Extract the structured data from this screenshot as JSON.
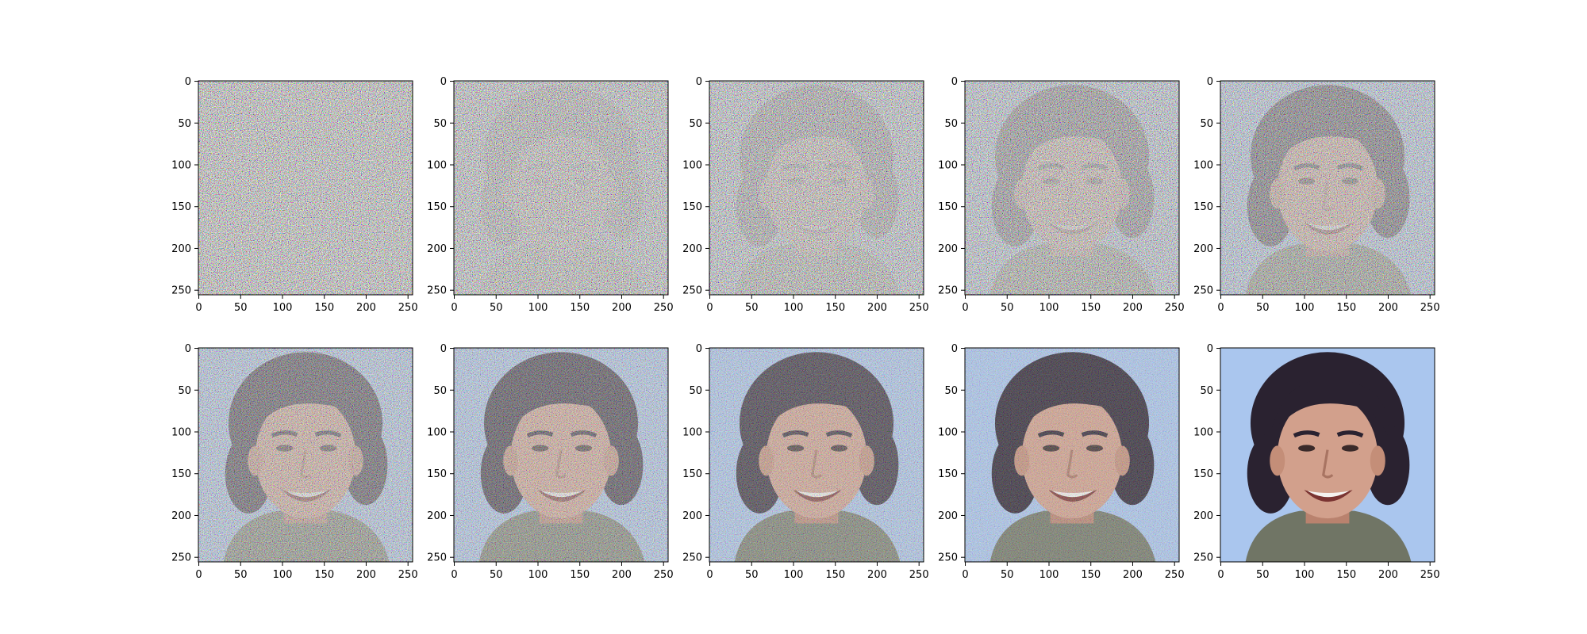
{
  "figure": {
    "rows": 2,
    "cols": 5,
    "axis_range": {
      "x": [
        0,
        255
      ],
      "y": [
        0,
        255
      ]
    },
    "tick_values": [
      0,
      50,
      100,
      150,
      200,
      250
    ],
    "tick_labels": [
      "0",
      "50",
      "100",
      "150",
      "200",
      "250"
    ],
    "panels": [
      {
        "noise_level": 1.0
      },
      {
        "noise_level": 0.96
      },
      {
        "noise_level": 0.92
      },
      {
        "noise_level": 0.86
      },
      {
        "noise_level": 0.76
      },
      {
        "noise_level": 0.66
      },
      {
        "noise_level": 0.56
      },
      {
        "noise_level": 0.44
      },
      {
        "noise_level": 0.3
      },
      {
        "noise_level": 0.0
      }
    ],
    "colors": {
      "sky": "#aac6ee",
      "hair": "#2a2230",
      "skin": "#d2a08c",
      "shirt": "#707565",
      "mouth": "#7a3432",
      "teeth": "#f4f2ef",
      "frame": "#000000"
    }
  }
}
